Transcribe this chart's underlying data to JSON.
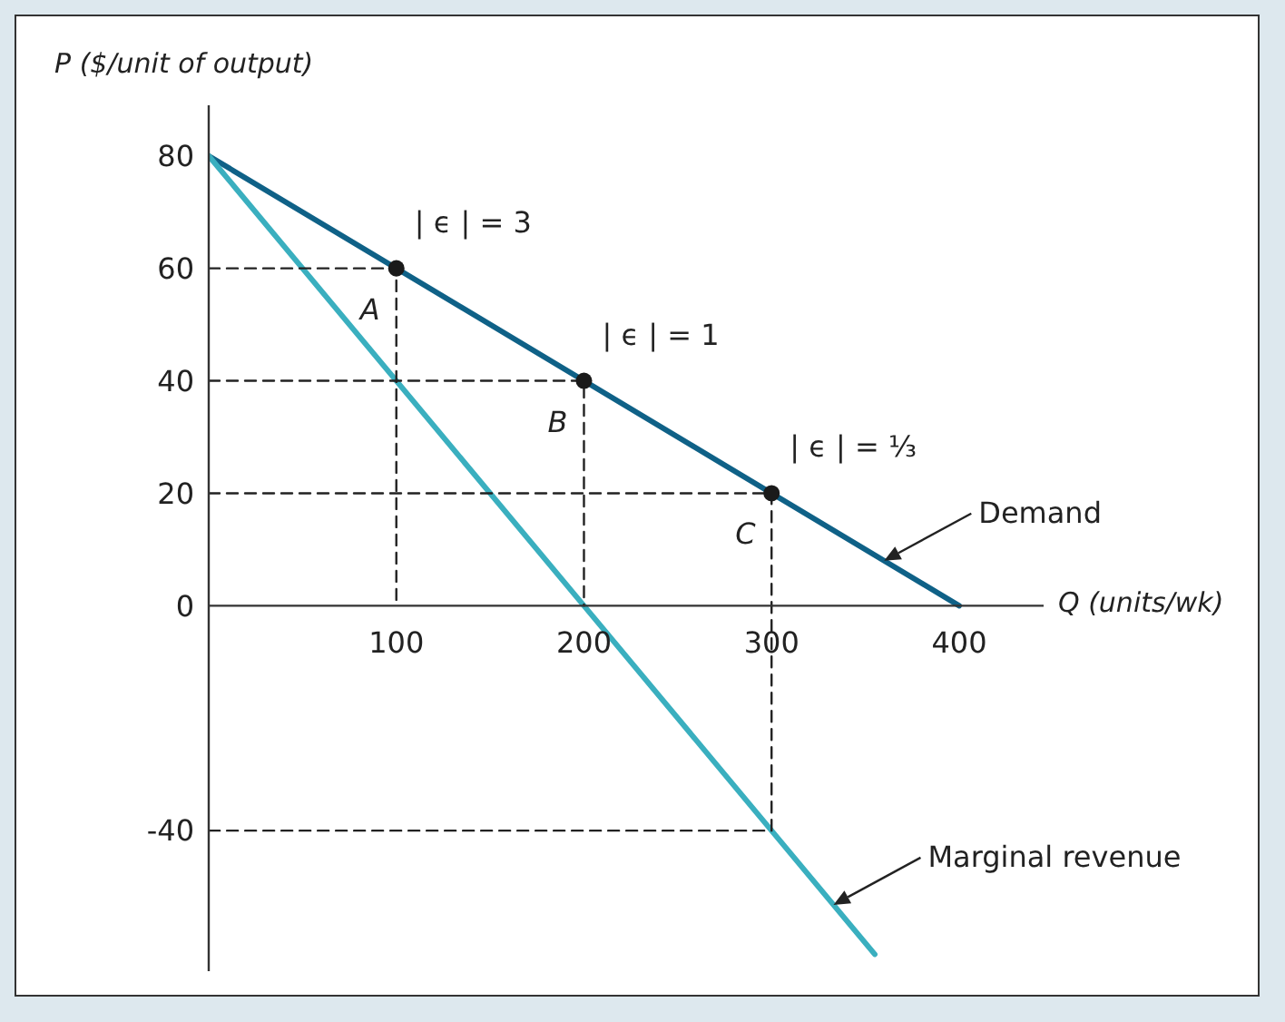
{
  "chart_data": {
    "type": "line",
    "xlabel": "Q (units/wk)",
    "ylabel": "P ($/unit of output)",
    "xlim": [
      0,
      445
    ],
    "ylim": [
      -65,
      89
    ],
    "xticks": [
      100,
      200,
      300,
      400
    ],
    "yticks": [
      -40,
      0,
      20,
      40,
      60,
      80
    ],
    "grid": false,
    "legend": false,
    "series": [
      {
        "name": "Demand",
        "color": "#0f6187",
        "x": [
          0,
          400
        ],
        "values": [
          80,
          0
        ],
        "marker": "none",
        "line_style": "solid"
      },
      {
        "name": "Marginal revenue",
        "color": "#3aafbf",
        "x": [
          0,
          200,
          300,
          355
        ],
        "values": [
          80,
          0,
          -40,
          -62
        ],
        "marker": "none",
        "line_style": "solid"
      },
      {
        "color": "#222222",
        "x": [
          0,
          100,
          100
        ],
        "values": [
          60,
          60,
          0
        ],
        "marker": "none",
        "line_style": "dashed"
      },
      {
        "color": "#222222",
        "x": [
          0,
          200,
          200
        ],
        "values": [
          40,
          40,
          0
        ],
        "marker": "none",
        "line_style": "dashed"
      },
      {
        "color": "#222222",
        "x": [
          0,
          300,
          300,
          0
        ],
        "values": [
          20,
          20,
          -40,
          -40
        ],
        "marker": "none",
        "line_style": "dashed"
      },
      {
        "type": "scatter",
        "color": "#1a1a1a",
        "x": [
          100,
          200,
          300
        ],
        "values": [
          60,
          40,
          20
        ],
        "marker": "circle"
      }
    ],
    "annotations": [
      {
        "text": "| ϵ | = 3",
        "x": 100,
        "y": 60
      },
      {
        "text": "A",
        "x": 100,
        "y": 60
      },
      {
        "text": "| ϵ | = 1",
        "x": 200,
        "y": 40
      },
      {
        "text": "B",
        "x": 200,
        "y": 40
      },
      {
        "text": "| ϵ | = ⅓",
        "x": 300,
        "y": 20
      },
      {
        "text": "C",
        "x": 300,
        "y": 20
      }
    ]
  }
}
